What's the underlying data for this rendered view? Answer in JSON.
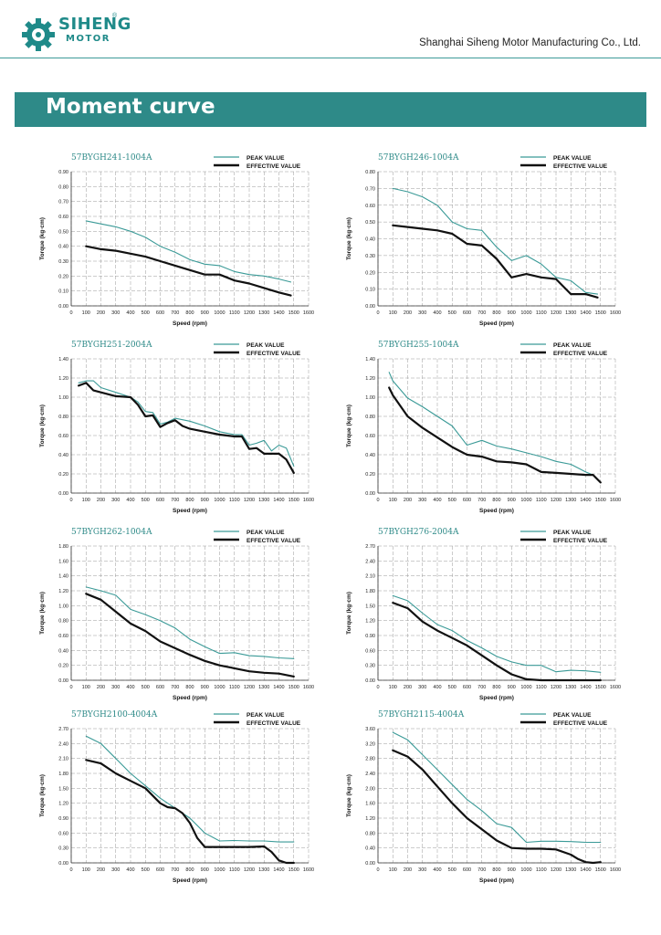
{
  "header": {
    "brand_line1": "SIHENG",
    "brand_line2": "MOTOR",
    "registered_mark": "®",
    "company": "Shanghai Siheng Motor Manufacturing Co., Ltd.",
    "accent_color": "#2e8a88"
  },
  "banner": {
    "title": "Moment curve"
  },
  "chart_data": [
    {
      "type": "line",
      "title": "57BYGH241-1004A",
      "xlabel": "Speed (rpm)",
      "ylabel": "Torque (kg·cm)",
      "xlim": [
        0,
        1600
      ],
      "ylim": [
        0,
        0.9
      ],
      "ytick_step": 0.1,
      "ytick_decimals": 2,
      "grid": true,
      "legend": "top-right",
      "series": [
        {
          "name": "PEAK VALUE",
          "color": "#3a9a97",
          "x": [
            100,
            200,
            300,
            400,
            500,
            600,
            700,
            800,
            900,
            1000,
            1100,
            1200,
            1300,
            1400,
            1480
          ],
          "y": [
            0.57,
            0.55,
            0.53,
            0.5,
            0.46,
            0.4,
            0.36,
            0.31,
            0.28,
            0.27,
            0.23,
            0.21,
            0.2,
            0.18,
            0.16
          ]
        },
        {
          "name": "EFFECTIVE VALUE",
          "color": "#111111",
          "x": [
            100,
            200,
            300,
            400,
            500,
            600,
            700,
            800,
            900,
            1000,
            1100,
            1200,
            1300,
            1400,
            1480
          ],
          "y": [
            0.4,
            0.38,
            0.37,
            0.35,
            0.33,
            0.3,
            0.27,
            0.24,
            0.21,
            0.21,
            0.17,
            0.15,
            0.12,
            0.09,
            0.07
          ]
        }
      ]
    },
    {
      "type": "line",
      "title": "57BYGH246-1004A",
      "xlabel": "Speed (rpm)",
      "ylabel": "Torque (kg·cm)",
      "xlim": [
        0,
        1600
      ],
      "ylim": [
        0,
        0.8
      ],
      "ytick_step": 0.1,
      "ytick_decimals": 2,
      "grid": true,
      "legend": "top-right",
      "series": [
        {
          "name": "PEAK VALUE",
          "color": "#3a9a97",
          "x": [
            100,
            200,
            300,
            400,
            500,
            600,
            700,
            800,
            900,
            1000,
            1100,
            1200,
            1300,
            1400,
            1480
          ],
          "y": [
            0.7,
            0.68,
            0.65,
            0.6,
            0.5,
            0.46,
            0.45,
            0.35,
            0.27,
            0.3,
            0.25,
            0.17,
            0.15,
            0.08,
            0.07
          ]
        },
        {
          "name": "EFFECTIVE VALUE",
          "color": "#111111",
          "x": [
            100,
            200,
            300,
            400,
            500,
            600,
            700,
            800,
            900,
            1000,
            1100,
            1200,
            1300,
            1400,
            1480
          ],
          "y": [
            0.48,
            0.47,
            0.46,
            0.45,
            0.43,
            0.37,
            0.36,
            0.28,
            0.17,
            0.19,
            0.17,
            0.16,
            0.07,
            0.07,
            0.05
          ]
        }
      ]
    },
    {
      "type": "line",
      "title": "57BYGH251-2004A",
      "xlabel": "Speed (rpm)",
      "ylabel": "Torque (kg·cm)",
      "xlim": [
        0,
        1600
      ],
      "ylim": [
        0,
        1.4
      ],
      "ytick_step": 0.2,
      "ytick_decimals": 2,
      "grid": true,
      "legend": "top-right",
      "series": [
        {
          "name": "PEAK VALUE",
          "color": "#3a9a97",
          "x": [
            50,
            100,
            150,
            200,
            300,
            400,
            450,
            500,
            550,
            600,
            650,
            700,
            800,
            900,
            1000,
            1100,
            1150,
            1200,
            1250,
            1300,
            1350,
            1400,
            1450,
            1500
          ],
          "y": [
            1.15,
            1.17,
            1.17,
            1.1,
            1.05,
            1.0,
            0.95,
            0.85,
            0.84,
            0.72,
            0.74,
            0.78,
            0.75,
            0.7,
            0.64,
            0.61,
            0.61,
            0.5,
            0.52,
            0.55,
            0.44,
            0.5,
            0.47,
            0.28
          ]
        },
        {
          "name": "EFFECTIVE VALUE",
          "color": "#111111",
          "x": [
            50,
            100,
            150,
            200,
            300,
            400,
            450,
            500,
            550,
            600,
            650,
            700,
            750,
            800,
            900,
            1000,
            1100,
            1150,
            1200,
            1250,
            1300,
            1350,
            1400,
            1450,
            1500
          ],
          "y": [
            1.12,
            1.15,
            1.07,
            1.05,
            1.01,
            1.0,
            0.92,
            0.8,
            0.81,
            0.69,
            0.73,
            0.76,
            0.7,
            0.67,
            0.64,
            0.61,
            0.59,
            0.59,
            0.46,
            0.47,
            0.41,
            0.41,
            0.41,
            0.35,
            0.21
          ]
        }
      ]
    },
    {
      "type": "line",
      "title": "57BYGH255-1004A",
      "xlabel": "Speed (rpm)",
      "ylabel": "Torque (kg·cm)",
      "xlim": [
        0,
        1600
      ],
      "ylim": [
        0,
        1.4
      ],
      "ytick_step": 0.2,
      "ytick_decimals": 2,
      "grid": true,
      "legend": "top-right",
      "series": [
        {
          "name": "PEAK VALUE",
          "color": "#3a9a97",
          "x": [
            75,
            100,
            200,
            300,
            400,
            500,
            600,
            700,
            800,
            900,
            1000,
            1100,
            1200,
            1300,
            1400,
            1450
          ],
          "y": [
            1.26,
            1.17,
            0.99,
            0.9,
            0.8,
            0.7,
            0.5,
            0.55,
            0.49,
            0.46,
            0.42,
            0.38,
            0.33,
            0.3,
            0.22,
            0.19
          ]
        },
        {
          "name": "EFFECTIVE VALUE",
          "color": "#111111",
          "x": [
            75,
            100,
            200,
            300,
            400,
            500,
            600,
            700,
            800,
            900,
            1000,
            1100,
            1200,
            1300,
            1400,
            1450,
            1500
          ],
          "y": [
            1.1,
            1.02,
            0.8,
            0.68,
            0.58,
            0.48,
            0.4,
            0.38,
            0.33,
            0.32,
            0.3,
            0.22,
            0.21,
            0.2,
            0.19,
            0.19,
            0.11
          ]
        }
      ]
    },
    {
      "type": "line",
      "title": "57BYGH262-1004A",
      "xlabel": "Speed (rpm)",
      "ylabel": "Torque (kg·cm)",
      "xlim": [
        0,
        1600
      ],
      "ylim": [
        0,
        1.8
      ],
      "ytick_step": 0.2,
      "ytick_decimals": 2,
      "grid": true,
      "legend": "top-right",
      "series": [
        {
          "name": "PEAK VALUE",
          "color": "#3a9a97",
          "x": [
            100,
            200,
            300,
            400,
            500,
            600,
            700,
            800,
            900,
            1000,
            1100,
            1200,
            1300,
            1400,
            1500
          ],
          "y": [
            1.25,
            1.2,
            1.14,
            0.95,
            0.88,
            0.8,
            0.7,
            0.55,
            0.45,
            0.36,
            0.37,
            0.33,
            0.32,
            0.3,
            0.29
          ]
        },
        {
          "name": "EFFECTIVE VALUE",
          "color": "#111111",
          "x": [
            100,
            200,
            300,
            400,
            500,
            600,
            700,
            800,
            900,
            1000,
            1100,
            1200,
            1300,
            1400,
            1500
          ],
          "y": [
            1.16,
            1.08,
            0.92,
            0.76,
            0.66,
            0.52,
            0.43,
            0.34,
            0.26,
            0.2,
            0.16,
            0.12,
            0.1,
            0.09,
            0.05
          ]
        }
      ]
    },
    {
      "type": "line",
      "title": "57BYGH276-2004A",
      "xlabel": "Speed (rpm)",
      "ylabel": "Torque (kg·cm)",
      "xlim": [
        0,
        1600
      ],
      "ylim": [
        0,
        2.7
      ],
      "ytick_step": 0.3,
      "ytick_decimals": 2,
      "grid": true,
      "legend": "top-right",
      "series": [
        {
          "name": "PEAK VALUE",
          "color": "#3a9a97",
          "x": [
            100,
            200,
            300,
            400,
            500,
            600,
            700,
            800,
            900,
            1000,
            1100,
            1200,
            1300,
            1400,
            1500
          ],
          "y": [
            1.7,
            1.6,
            1.35,
            1.12,
            1.0,
            0.8,
            0.65,
            0.48,
            0.37,
            0.3,
            0.3,
            0.17,
            0.2,
            0.19,
            0.16
          ]
        },
        {
          "name": "EFFECTIVE VALUE",
          "color": "#111111",
          "x": [
            100,
            200,
            300,
            400,
            500,
            600,
            700,
            800,
            900,
            1000,
            1100,
            1200,
            1300,
            1400,
            1500
          ],
          "y": [
            1.56,
            1.45,
            1.18,
            1.0,
            0.85,
            0.7,
            0.5,
            0.3,
            0.12,
            0.02,
            0.0,
            0.0,
            0.0,
            0.0,
            0.0
          ]
        }
      ]
    },
    {
      "type": "line",
      "title": "57BYGH2100-4004A",
      "xlabel": "Speed (rpm)",
      "ylabel": "Torque (kg·cm)",
      "xlim": [
        0,
        1600
      ],
      "ylim": [
        0,
        2.7
      ],
      "ytick_step": 0.3,
      "ytick_decimals": 2,
      "grid": true,
      "legend": "top-right",
      "series": [
        {
          "name": "PEAK VALUE",
          "color": "#3a9a97",
          "x": [
            100,
            200,
            300,
            400,
            500,
            600,
            700,
            800,
            900,
            1000,
            1100,
            1200,
            1300,
            1400,
            1500
          ],
          "y": [
            2.55,
            2.4,
            2.1,
            1.8,
            1.55,
            1.3,
            1.1,
            0.9,
            0.6,
            0.44,
            0.45,
            0.44,
            0.44,
            0.42,
            0.42
          ]
        },
        {
          "name": "EFFECTIVE VALUE",
          "color": "#111111",
          "x": [
            100,
            200,
            300,
            400,
            500,
            600,
            650,
            700,
            750,
            800,
            850,
            900,
            1000,
            1100,
            1200,
            1300,
            1350,
            1400,
            1450,
            1500
          ],
          "y": [
            2.07,
            2.0,
            1.8,
            1.65,
            1.5,
            1.2,
            1.12,
            1.1,
            1.0,
            0.8,
            0.5,
            0.32,
            0.32,
            0.32,
            0.32,
            0.33,
            0.22,
            0.05,
            0.0,
            0.0
          ]
        }
      ]
    },
    {
      "type": "line",
      "title": "57BYGH2115-4004A",
      "xlabel": "Speed (rpm)",
      "ylabel": "Torque (kg·cm)",
      "xlim": [
        0,
        1600
      ],
      "ylim": [
        0,
        3.6
      ],
      "ytick_step": 0.4,
      "ytick_decimals": 2,
      "grid": true,
      "legend": "top-right",
      "series": [
        {
          "name": "PEAK VALUE",
          "color": "#3a9a97",
          "x": [
            100,
            200,
            300,
            400,
            500,
            600,
            700,
            800,
            900,
            1000,
            1100,
            1200,
            1300,
            1400,
            1500
          ],
          "y": [
            3.5,
            3.3,
            2.9,
            2.5,
            2.1,
            1.7,
            1.4,
            1.05,
            0.95,
            0.55,
            0.58,
            0.58,
            0.57,
            0.55,
            0.55
          ]
        },
        {
          "name": "EFFECTIVE VALUE",
          "color": "#111111",
          "x": [
            100,
            200,
            300,
            400,
            500,
            600,
            700,
            800,
            900,
            1000,
            1100,
            1200,
            1300,
            1350,
            1400,
            1450,
            1500
          ],
          "y": [
            3.02,
            2.85,
            2.5,
            2.05,
            1.6,
            1.2,
            0.9,
            0.6,
            0.4,
            0.38,
            0.38,
            0.36,
            0.22,
            0.1,
            0.02,
            0.0,
            0.02
          ]
        }
      ]
    }
  ]
}
